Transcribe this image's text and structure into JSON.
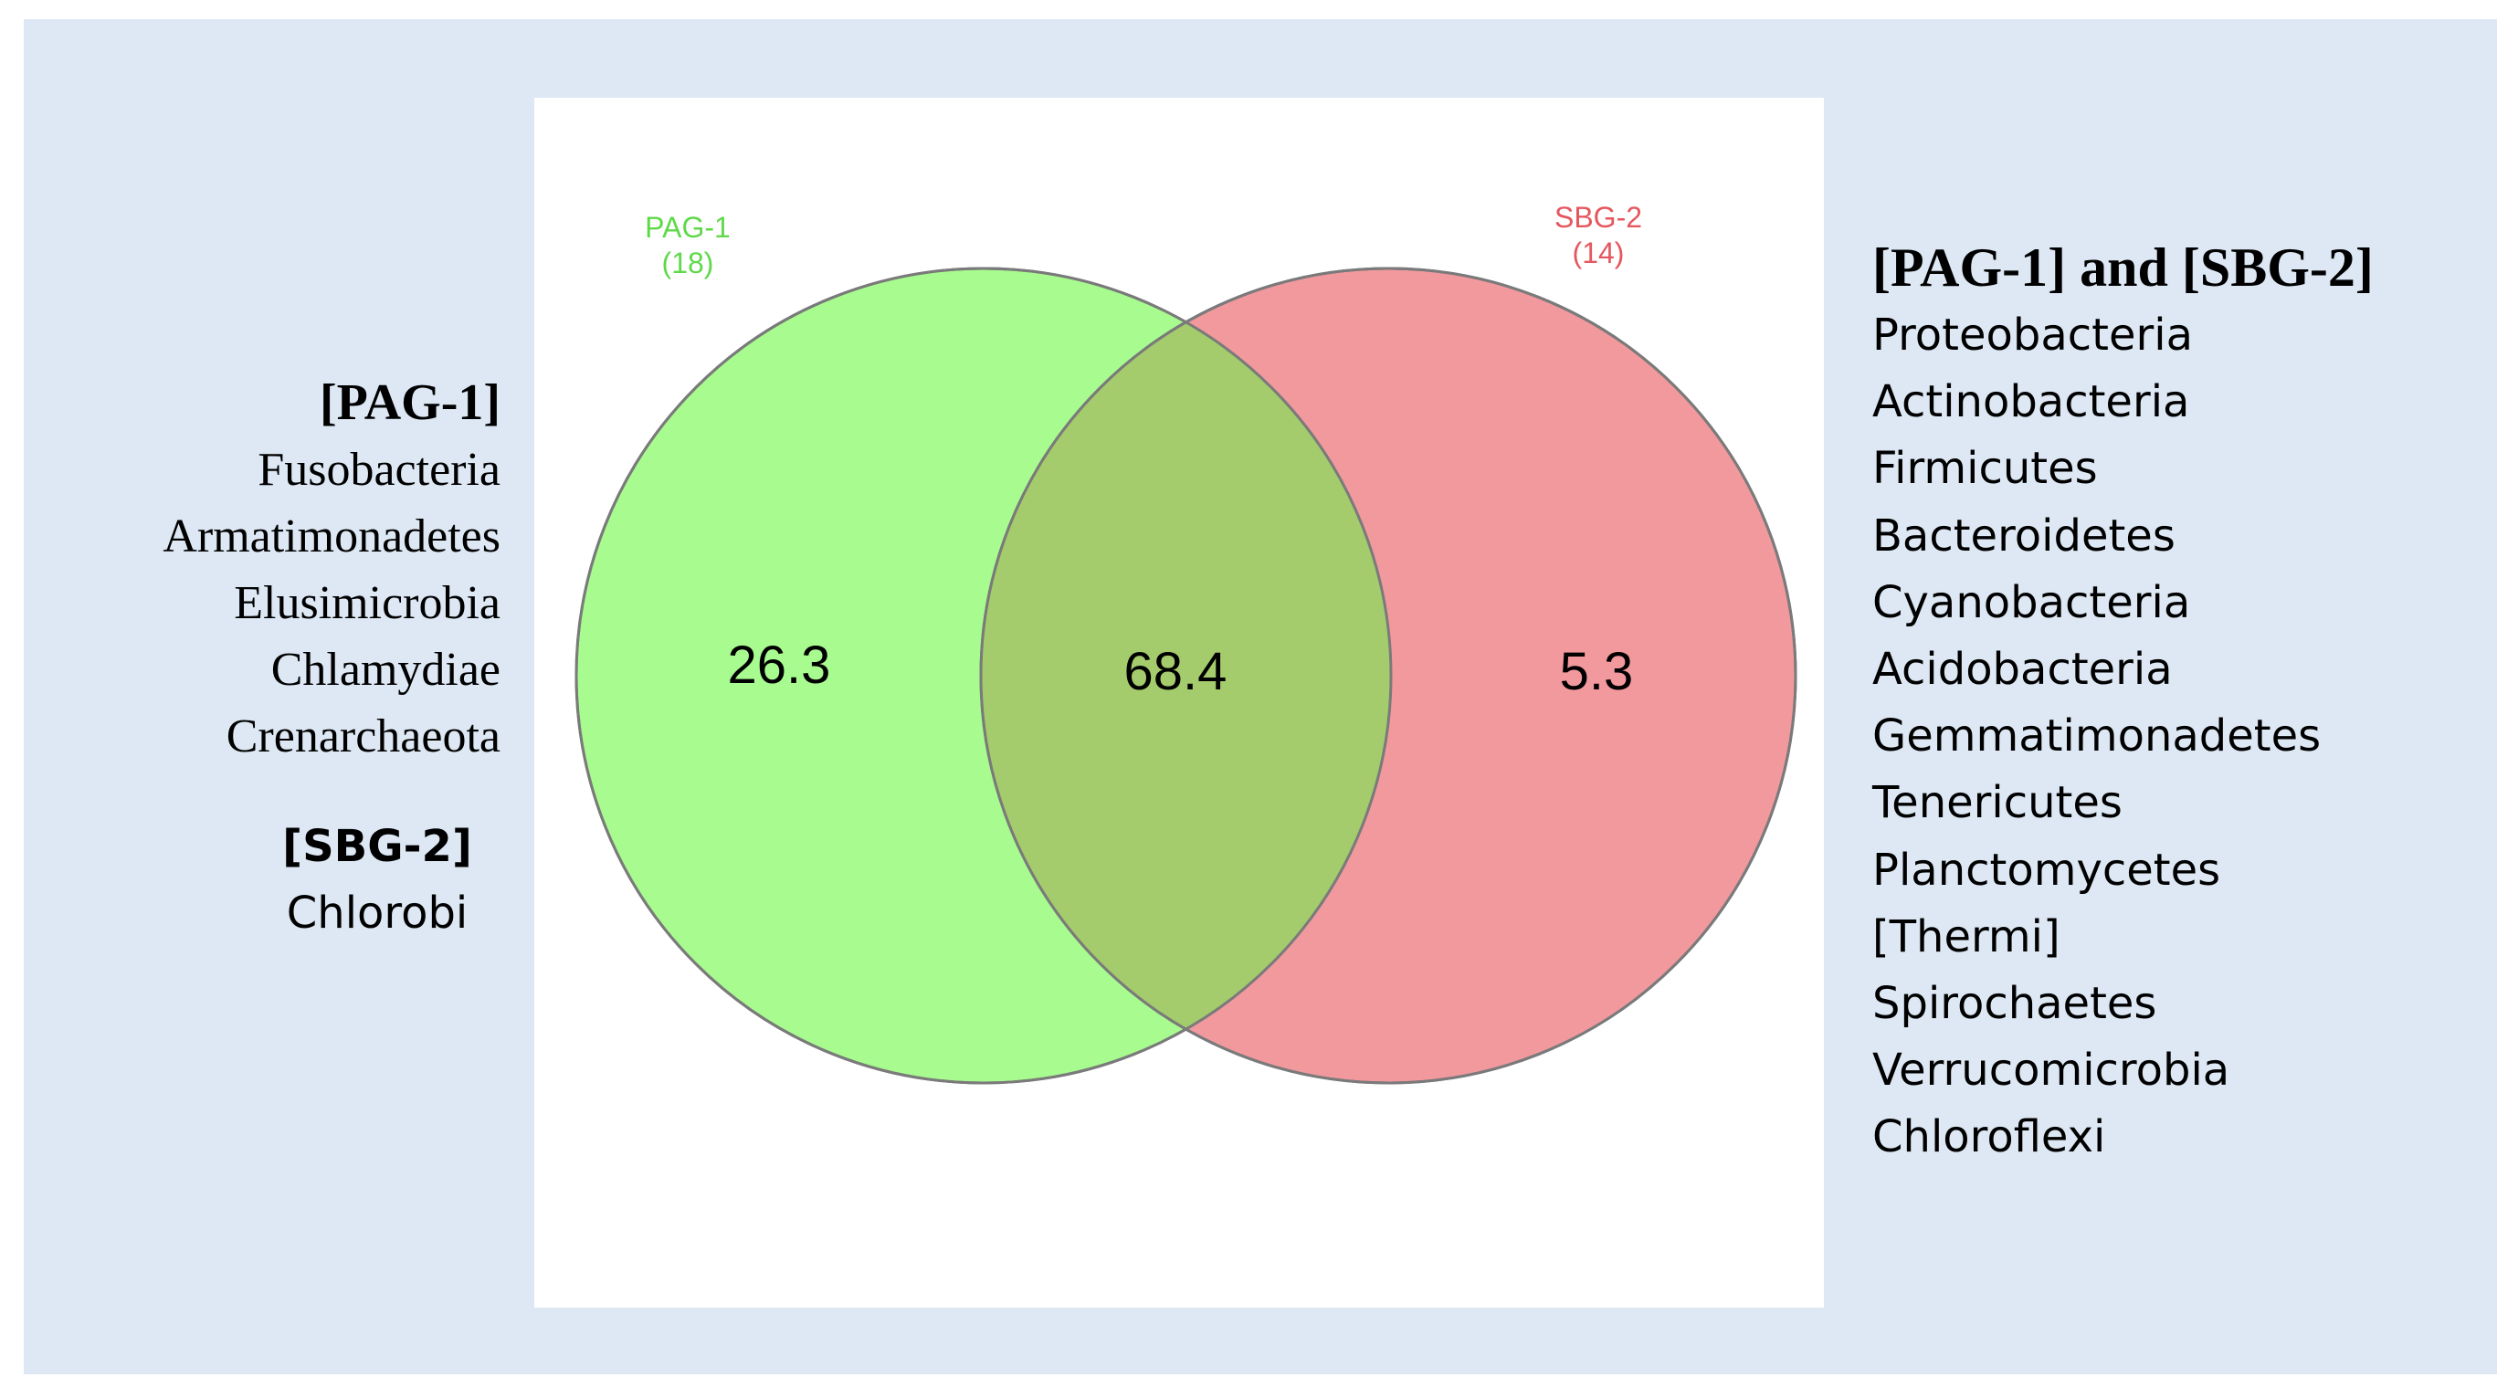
{
  "venn": {
    "set_a": {
      "label": "PAG-1",
      "count": "(18)",
      "color": "#a8fb8f",
      "label_color": "#5fd94a"
    },
    "set_b": {
      "label": "SBG-2",
      "count": "(14)",
      "color": "#f2999e",
      "label_color": "#e5575f"
    },
    "overlap_color": "#a4cb6c",
    "only_a_value": "26.3",
    "intersection_value": "68.4",
    "only_b_value": "5.3"
  },
  "left_panel": {
    "pag_heading": "[PAG-1]",
    "pag_items": [
      "Fusobacteria",
      "Armatimonadetes",
      "Elusimicrobia",
      "Chlamydiae",
      "Crenarchaeota"
    ],
    "sbg_heading": "[SBG-2]",
    "sbg_items": [
      "Chlorobi"
    ]
  },
  "right_panel": {
    "heading": "[PAG-1] and [SBG-2]",
    "items": [
      "Proteobacteria",
      "Actinobacteria",
      "Firmicutes",
      "Bacteroidetes",
      "Cyanobacteria",
      "Acidobacteria",
      "Gemmatimonadetes",
      "Tenericutes",
      "Planctomycetes",
      "[Thermi]",
      "Spirochaetes",
      "Verrucomicrobia",
      "Chloroflexi"
    ]
  },
  "colors": {
    "background_panel": "#dde8f4"
  }
}
